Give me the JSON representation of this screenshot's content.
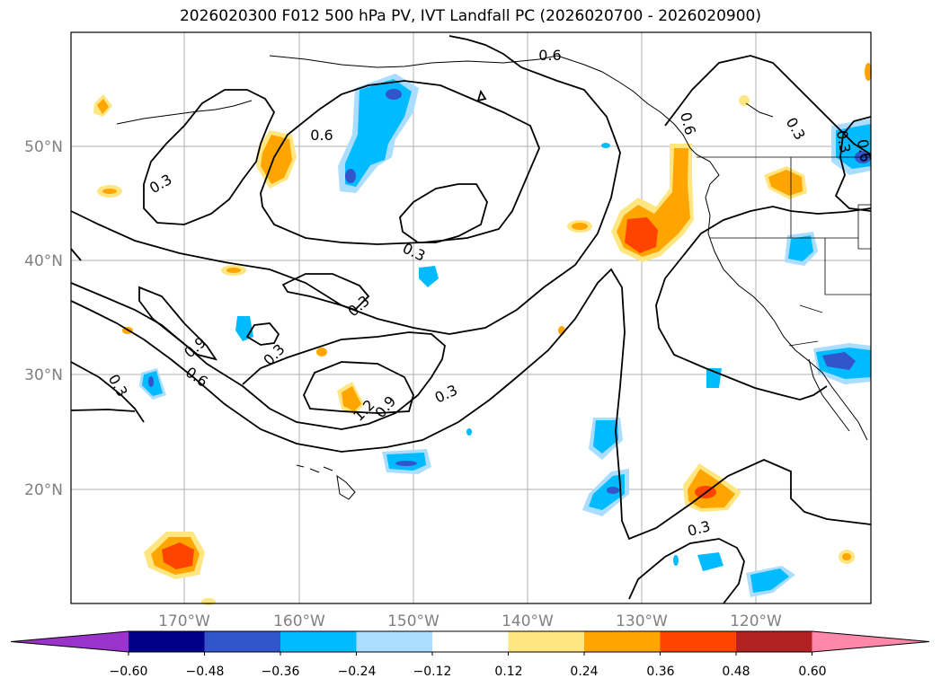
{
  "title": "2026020300 F012 500 hPa PV, IVT Landfall PC (2026020700 - 2026020900)",
  "lat_labels": [
    "50°N",
    "40°N",
    "30°N",
    "20°N"
  ],
  "lon_labels": [
    "170°W",
    "160°W",
    "150°W",
    "140°W",
    "130°W",
    "120°W"
  ],
  "contour_labels": [
    "0.6",
    "0.6",
    "0.3",
    "0.6",
    "0.3",
    "0.3",
    "0.6",
    "0.3",
    "0.3",
    "0.3",
    "0.9",
    "0.6",
    "0.3",
    "1.2",
    "0.9",
    "0.3",
    "0.3"
  ],
  "colorbar": {
    "tick_labels": [
      "−0.60",
      "−0.48",
      "−0.36",
      "−0.24",
      "−0.12",
      "0.12",
      "0.24",
      "0.36",
      "0.48",
      "0.60"
    ],
    "colors": [
      "#9933cc",
      "#000088",
      "#3355cc",
      "#00bbff",
      "#aaddff",
      "#ffffff",
      "#ffe680",
      "#ffa500",
      "#ff4400",
      "#b22222",
      "#ff88aa"
    ]
  }
}
